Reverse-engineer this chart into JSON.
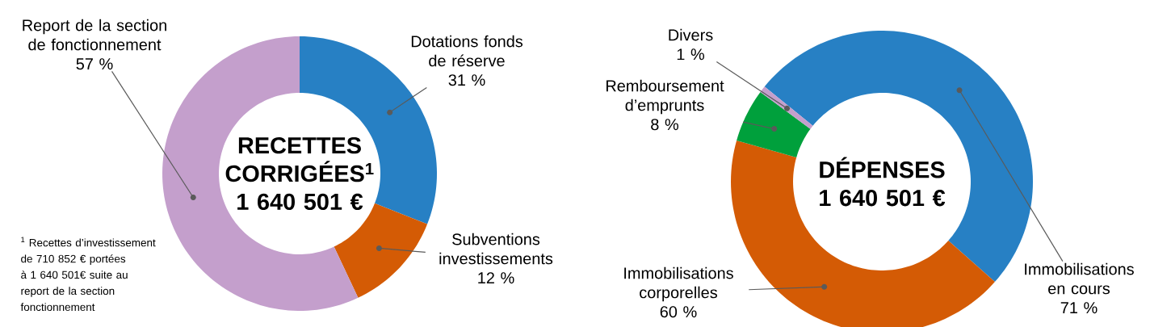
{
  "chart_data": [
    {
      "type": "donut",
      "title": "RECETTES CORRIGÉES$^{1}$",
      "subtitle": "1 640 501 €",
      "categories": [
        "Dotations fonds de réserve",
        "Subventions investissements",
        "Report de la section de fonctionnement"
      ],
      "values": [
        31,
        12,
        57
      ],
      "value_labels": [
        "31 %",
        "12 %",
        "57 %"
      ],
      "colors": [
        "#2780c4",
        "#d45b05",
        "#c49fcc"
      ],
      "annotations": [
        "$^{1}$ Recettes d’investissement de 710 852 € portées à 1 640 501€ suite au report de la section fonctionnement"
      ]
    },
    {
      "type": "donut",
      "title": "DÉPENSES",
      "subtitle": "1 640 501 €",
      "categories": [
        "Immobilisations en cours",
        "Immobilisations corporelles",
        "Remboursement d’emprunts",
        "Divers"
      ],
      "values": [
        71,
        60,
        8,
        1
      ],
      "value_labels": [
        "71 %",
        "60 %",
        "8 %",
        "1 %"
      ],
      "colors": [
        "#2780c4",
        "#d45b05",
        "#00a03c",
        "#c49fcc"
      ]
    }
  ]
}
